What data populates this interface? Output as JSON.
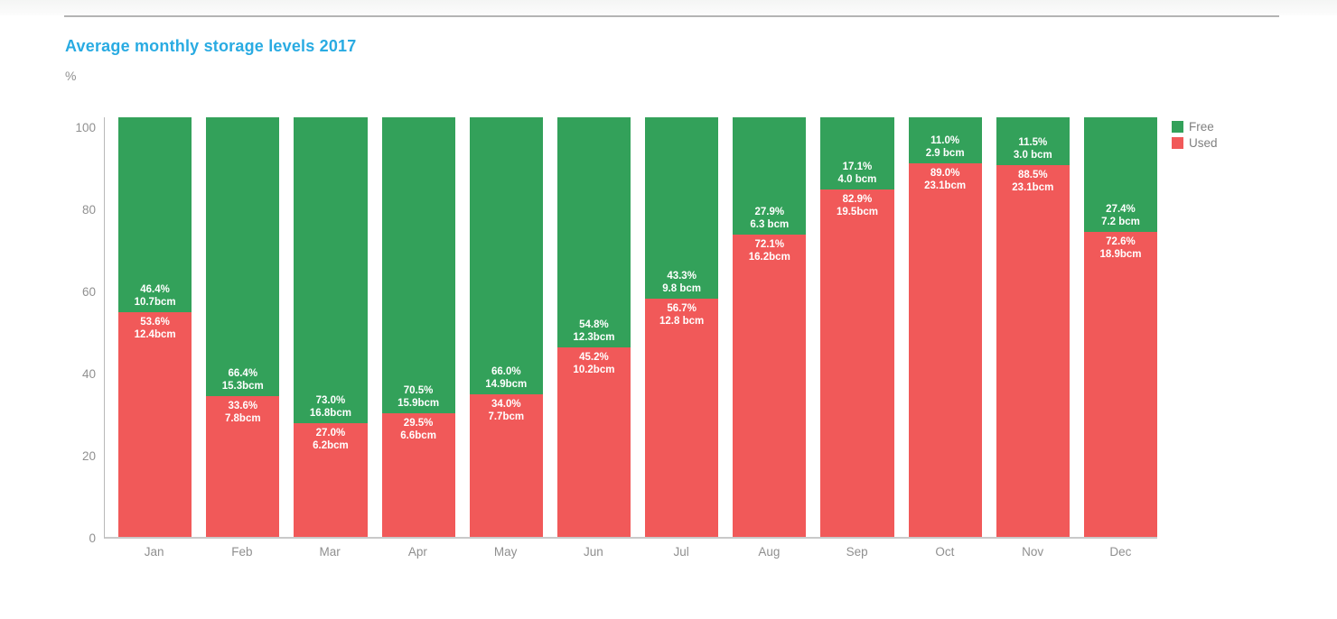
{
  "header": {
    "title": "Average monthly storage levels 2017",
    "y_axis_unit": "%"
  },
  "legend": {
    "items": [
      {
        "name": "Free",
        "color": "#33a15a"
      },
      {
        "name": "Used",
        "color": "#f15959"
      }
    ]
  },
  "colors": {
    "free": "#33a15a",
    "used": "#f15959",
    "title": "#29abe2",
    "axis_text": "#909090",
    "bar_label_text": "#ffffff"
  },
  "chart_data": {
    "type": "bar",
    "stacked": true,
    "orientation": "vertical",
    "title": "Average monthly storage levels 2017",
    "xlabel": "",
    "ylabel": "%",
    "ylim": [
      0,
      100
    ],
    "yticks": [
      0,
      20,
      40,
      60,
      80,
      100
    ],
    "grid": false,
    "legend_position": "top-right",
    "categories": [
      "Jan",
      "Feb",
      "Mar",
      "Apr",
      "May",
      "Jun",
      "Jul",
      "Aug",
      "Sep",
      "Oct",
      "Nov",
      "Dec"
    ],
    "series": [
      {
        "name": "Free",
        "color": "#33a15a",
        "unit": "%",
        "values": [
          46.4,
          66.4,
          73.0,
          70.5,
          66.0,
          54.8,
          43.3,
          27.9,
          17.1,
          11.0,
          11.5,
          27.4
        ],
        "pct_labels": [
          "46.4%",
          "66.4%",
          "73.0%",
          "70.5%",
          "66.0%",
          "54.8%",
          "43.3%",
          "27.9%",
          "17.1%",
          "11.0%",
          "11.5%",
          "27.4%"
        ],
        "volume_labels": [
          "10.7bcm",
          "15.3bcm",
          "16.8bcm",
          "15.9bcm",
          "14.9bcm",
          "12.3bcm",
          "9.8 bcm",
          "6.3 bcm",
          "4.0 bcm",
          "2.9 bcm",
          "3.0 bcm",
          "7.2 bcm"
        ]
      },
      {
        "name": "Used",
        "color": "#f15959",
        "unit": "%",
        "values": [
          53.6,
          33.6,
          27.0,
          29.5,
          34.0,
          45.2,
          56.7,
          72.1,
          82.9,
          89.0,
          88.5,
          72.6
        ],
        "pct_labels": [
          "53.6%",
          "33.6%",
          "27.0%",
          "29.5%",
          "34.0%",
          "45.2%",
          "56.7%",
          "72.1%",
          "82.9%",
          "89.0%",
          "88.5%",
          "72.6%"
        ],
        "volume_labels": [
          "12.4bcm",
          "7.8bcm",
          "6.2bcm",
          "6.6bcm",
          "7.7bcm",
          "10.2bcm",
          "12.8 bcm",
          "16.2bcm",
          "19.5bcm",
          "23.1bcm",
          "23.1bcm",
          "18.9bcm"
        ]
      }
    ]
  }
}
